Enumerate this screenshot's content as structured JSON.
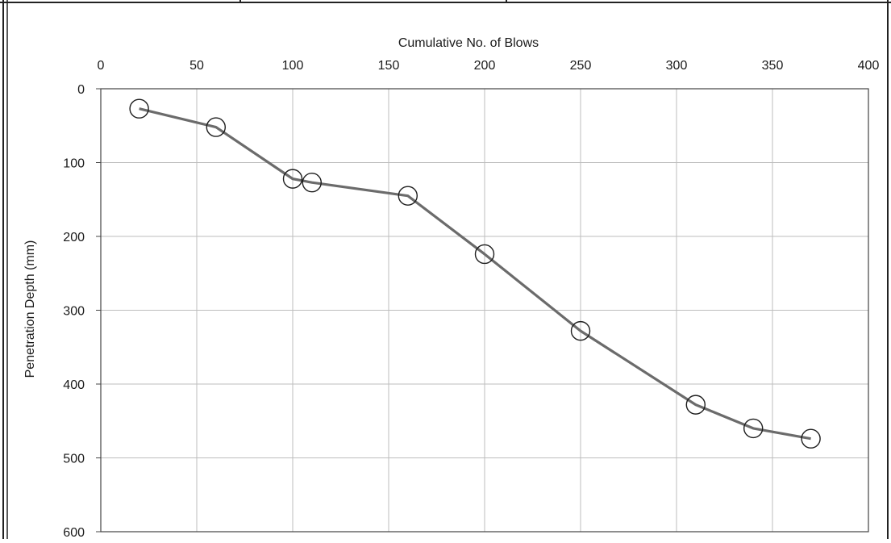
{
  "chart_data": {
    "type": "line",
    "title": "",
    "xlabel": "Cumulative No. of Blows",
    "ylabel": "Penetration Depth (mm)",
    "xlim": [
      0,
      400
    ],
    "ylim": [
      0,
      600
    ],
    "y_inverted": true,
    "x_axis_position": "top",
    "grid": true,
    "legend": "none",
    "x_ticks": [
      0,
      50,
      100,
      150,
      200,
      250,
      300,
      350,
      400
    ],
    "y_ticks": [
      0,
      100,
      200,
      300,
      400,
      500,
      600
    ],
    "series": [
      {
        "x": [
          20,
          60,
          100,
          110,
          160,
          200,
          250,
          310,
          340,
          370
        ],
        "y": [
          27,
          52,
          122,
          127,
          145,
          224,
          328,
          428,
          460,
          474
        ],
        "line_color": "#6b6b6b",
        "marker": "open-circle"
      }
    ]
  }
}
